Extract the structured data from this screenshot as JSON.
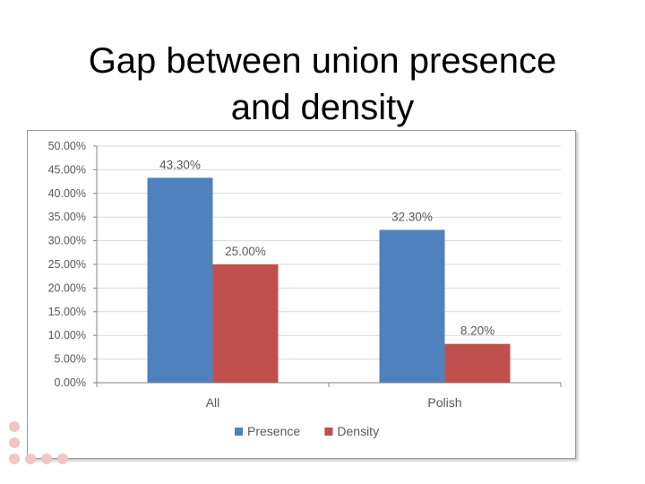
{
  "slide": {
    "title_line1": "Gap between union presence",
    "title_line2": "and density"
  },
  "colors": {
    "presence": "#4f81bd",
    "density": "#c0504d",
    "gridline": "#d9d9d9",
    "axis": "#868686",
    "text": "#595959",
    "decoration": "#f1c6c6"
  },
  "chart_data": {
    "type": "bar",
    "categories": [
      "All",
      "Polish"
    ],
    "series": [
      {
        "name": "Presence",
        "values": [
          43.3,
          32.3
        ],
        "labels": [
          "43.30%",
          "32.30%"
        ]
      },
      {
        "name": "Density",
        "values": [
          25.0,
          8.2
        ],
        "labels": [
          "25.00%",
          "8.20%"
        ]
      }
    ],
    "ylim": [
      0,
      50
    ],
    "yticks": [
      "0.00%",
      "5.00%",
      "10.00%",
      "15.00%",
      "20.00%",
      "25.00%",
      "30.00%",
      "35.00%",
      "40.00%",
      "45.00%",
      "50.00%"
    ],
    "ytick_values": [
      0,
      5,
      10,
      15,
      20,
      25,
      30,
      35,
      40,
      45,
      50
    ],
    "grid": true,
    "legend": "bottom",
    "title": "",
    "xlabel": "",
    "ylabel": ""
  }
}
